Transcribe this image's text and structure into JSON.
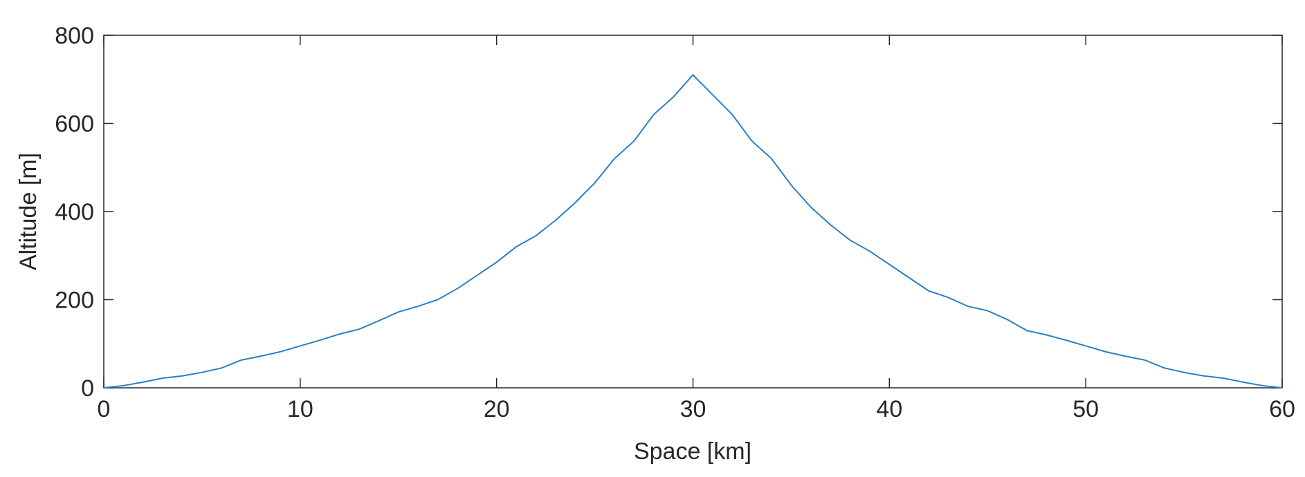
{
  "chart_data": {
    "type": "line",
    "xlabel": "Space [km]",
    "ylabel": "Altitude [m]",
    "x": [
      0,
      1,
      2,
      3,
      4,
      5,
      6,
      7,
      8,
      9,
      10,
      11,
      12,
      13,
      14,
      15,
      16,
      17,
      18,
      19,
      20,
      21,
      22,
      23,
      24,
      25,
      26,
      27,
      28,
      29,
      30,
      31,
      32,
      33,
      34,
      35,
      36,
      37,
      38,
      39,
      40,
      41,
      42,
      43,
      44,
      45,
      46,
      47,
      48,
      49,
      50,
      51,
      52,
      53,
      54,
      55,
      56,
      57,
      58,
      59,
      60
    ],
    "series": [
      {
        "color": "#2a7fc4",
        "values": [
          0,
          5,
          13,
          22,
          27,
          35,
          45,
          63,
          72,
          82,
          95,
          108,
          122,
          133,
          152,
          172,
          185,
          200,
          225,
          255,
          285,
          320,
          345,
          380,
          420,
          465,
          520,
          560,
          620,
          660,
          710,
          665,
          620,
          560,
          520,
          460,
          410,
          370,
          335,
          310,
          280,
          250,
          220,
          205,
          185,
          175,
          155,
          130,
          120,
          108,
          95,
          82,
          72,
          63,
          45,
          35,
          27,
          22,
          13,
          5,
          0
        ]
      }
    ],
    "xlim": [
      0,
      60
    ],
    "xticks": [
      0,
      10,
      20,
      30,
      40,
      50,
      60
    ],
    "ylim": [
      0,
      800
    ],
    "yticks": [
      0,
      200,
      400,
      600,
      800
    ]
  }
}
